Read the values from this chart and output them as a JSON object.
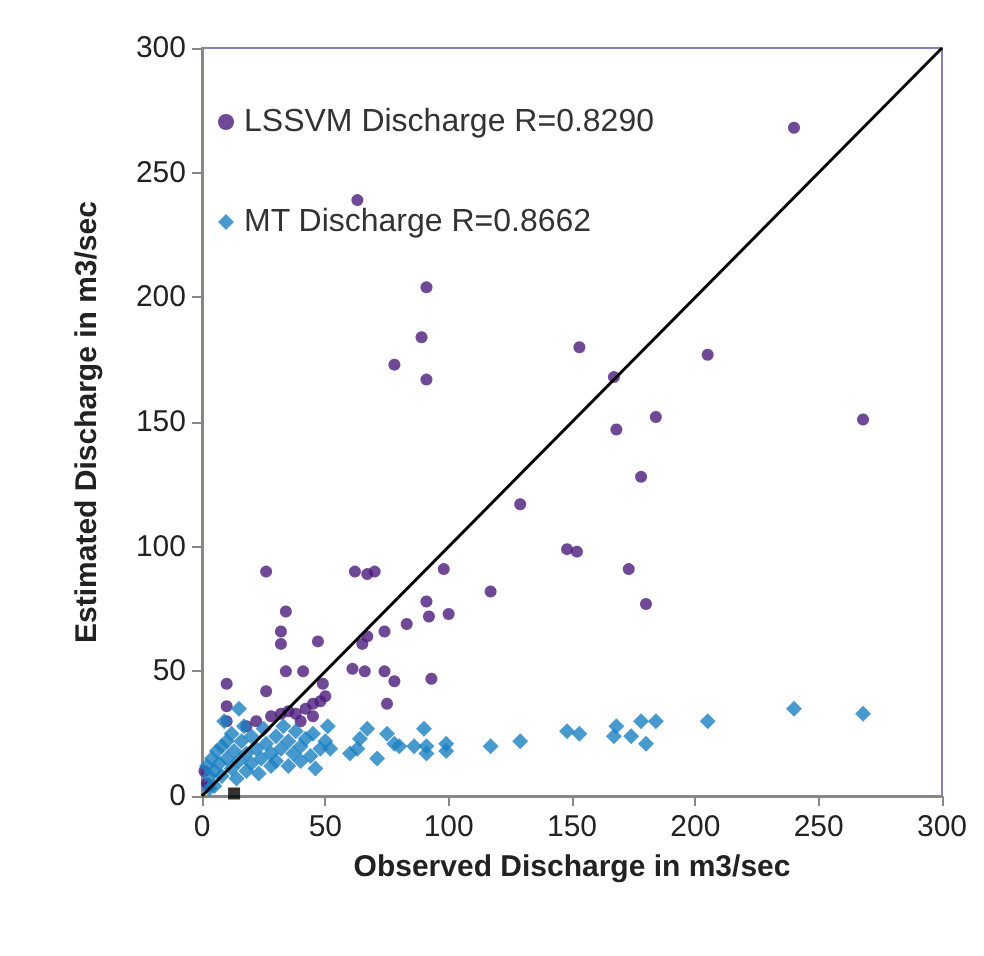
{
  "chart_data": {
    "type": "scatter",
    "xlabel": "Observed Discharge in m3/sec",
    "ylabel": "Estimated Discharge in m3/sec",
    "xlim": [
      0,
      300
    ],
    "xticks": [
      0,
      50,
      100,
      150,
      200,
      250,
      300
    ],
    "ylim": [
      0,
      300
    ],
    "yticks": [
      0,
      50,
      100,
      150,
      200,
      250,
      300
    ],
    "grid": false,
    "legend": "top left",
    "series": [
      {
        "name": "LSSVM Discharge R=0.8290",
        "color": "#4b1a7c",
        "marker": "circle",
        "x": [
          240,
          63,
          91,
          89,
          78,
          91,
          153,
          205,
          167,
          184,
          268,
          168,
          178,
          129,
          148,
          152,
          173,
          180,
          26,
          62,
          67,
          70,
          98,
          117,
          91,
          92,
          100,
          83,
          74,
          67,
          65,
          34,
          32,
          32,
          47,
          61,
          66,
          74,
          78,
          93,
          75,
          34,
          41,
          10,
          26,
          10,
          10,
          28,
          32,
          35,
          38,
          42,
          45,
          48,
          50,
          40,
          45,
          22,
          18,
          49,
          2,
          3,
          1
        ],
        "values": [
          268,
          239,
          204,
          184,
          173,
          167,
          180,
          177,
          168,
          152,
          151,
          147,
          128,
          117,
          99,
          98,
          91,
          77,
          90,
          90,
          89,
          90,
          91,
          82,
          78,
          72,
          73,
          69,
          66,
          64,
          61,
          74,
          66,
          61,
          62,
          51,
          50,
          50,
          46,
          47,
          37,
          50,
          50,
          45,
          42,
          36,
          30,
          32,
          33,
          34,
          33,
          35,
          37,
          38,
          40,
          30,
          32,
          30,
          28,
          45,
          5,
          4,
          10
        ]
      },
      {
        "name": "MT Discharge R=0.8662",
        "color": "#1a7fc1",
        "marker": "diamond",
        "x": [
          240,
          268,
          205,
          184,
          178,
          168,
          167,
          174,
          180,
          148,
          153,
          129,
          117,
          99,
          99,
          91,
          91,
          90,
          86,
          75,
          78,
          71,
          80,
          64,
          67,
          60,
          63,
          51,
          52,
          2,
          3,
          4,
          5,
          6,
          7,
          8,
          8,
          10,
          10,
          12,
          12,
          13,
          14,
          15,
          16,
          17,
          18,
          18,
          20,
          20,
          22,
          23,
          24,
          25,
          26,
          28,
          28,
          30,
          30,
          32,
          33,
          35,
          35,
          37,
          38,
          40,
          40,
          42,
          44,
          45,
          46,
          48,
          50,
          9,
          15,
          5,
          3
        ],
        "values": [
          35,
          33,
          30,
          30,
          30,
          28,
          24,
          24,
          21,
          26,
          25,
          22,
          20,
          21,
          18,
          20,
          17,
          27,
          20,
          25,
          21,
          15,
          20,
          23,
          27,
          17,
          19,
          28,
          19,
          12,
          8,
          15,
          10,
          18,
          13,
          20,
          8,
          15,
          22,
          11,
          25,
          18,
          7,
          14,
          22,
          28,
          10,
          17,
          13,
          24,
          19,
          9,
          15,
          27,
          21,
          12,
          17,
          24,
          14,
          19,
          28,
          12,
          22,
          17,
          26,
          14,
          20,
          23,
          16,
          25,
          11,
          19,
          22,
          30,
          35,
          4,
          3
        ]
      },
      {
        "type": "scatter",
        "color": "#000000",
        "marker": "square",
        "x": [
          13
        ],
        "values": [
          1
        ]
      },
      {
        "type": "line",
        "color": "#000000",
        "marker": "none",
        "x": [
          0,
          300
        ],
        "values": [
          0,
          300
        ]
      }
    ]
  }
}
